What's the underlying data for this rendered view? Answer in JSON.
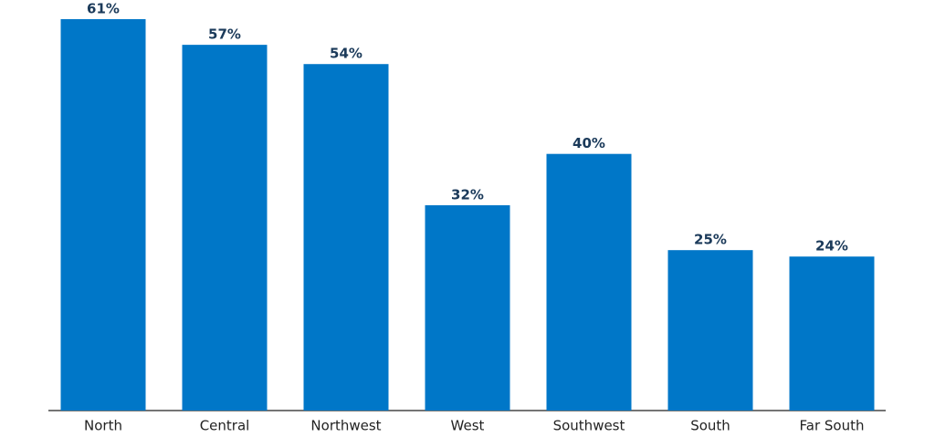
{
  "chart_data": {
    "type": "bar",
    "categories": [
      "North",
      "Central",
      "Northwest",
      "West",
      "Southwest",
      "South",
      "Far South"
    ],
    "values": [
      61,
      57,
      54,
      32,
      40,
      25,
      24
    ],
    "value_labels": [
      "61%",
      "57%",
      "54%",
      "32%",
      "40%",
      "25%",
      "24%"
    ],
    "color": "#0077c8"
  }
}
